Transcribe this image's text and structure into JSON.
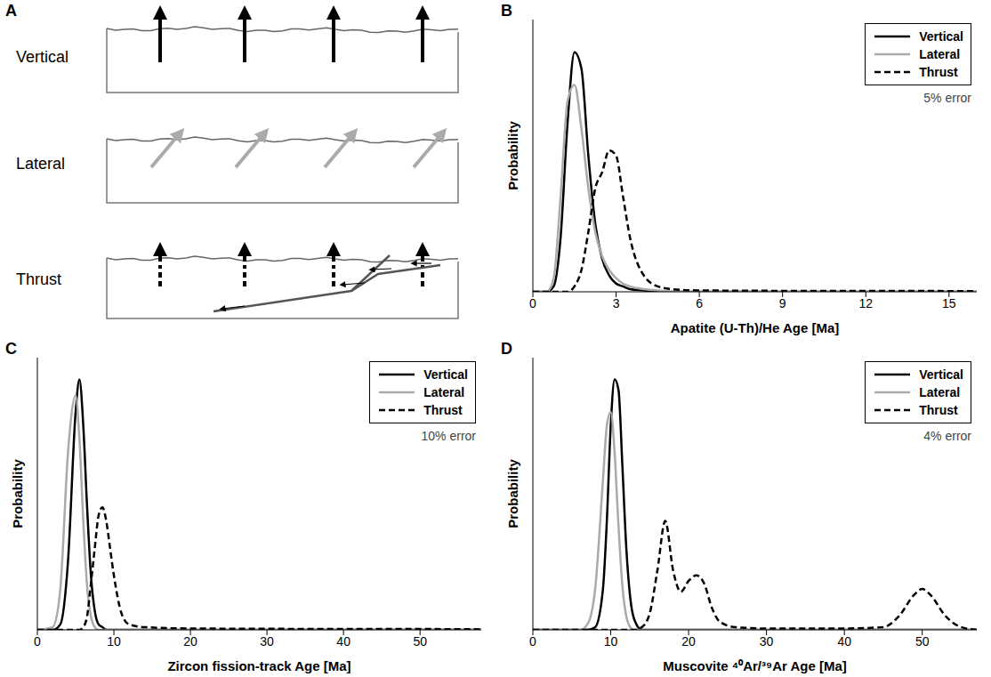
{
  "diagram": {
    "panel": "A",
    "labels": [
      "Vertical",
      "Lateral",
      "Thrust"
    ]
  },
  "chart_data": [
    {
      "type": "line",
      "panel": "B",
      "x_label": "Apatite (U-Th)/He Age [Ma]",
      "y_label": "Probability",
      "annotation": "5% error",
      "legend": "upper right",
      "tick_labels": "x",
      "grid": false,
      "xlim": [
        0,
        16
      ],
      "xticks": [
        0,
        3,
        6,
        9,
        12,
        15
      ],
      "ylim": [
        0,
        1
      ],
      "x": [
        0,
        0.5,
        0.75,
        1,
        1.25,
        1.5,
        1.75,
        2,
        2.25,
        2.5,
        2.75,
        3,
        3.25,
        3.5,
        4,
        4.5,
        5,
        6,
        8,
        10,
        12,
        14,
        16
      ],
      "series": [
        {
          "name": "Vertical",
          "color": "#000000",
          "line_style": "solid",
          "values": [
            0,
            0,
            0.02,
            0.2,
            0.62,
            0.88,
            0.82,
            0.5,
            0.25,
            0.12,
            0.06,
            0.03,
            0.02,
            0.01,
            0.005,
            0,
            0,
            0,
            0,
            0,
            0,
            0,
            0
          ]
        },
        {
          "name": "Lateral",
          "color": "#aaaaaa",
          "line_style": "solid",
          "values": [
            0,
            0,
            0.05,
            0.35,
            0.7,
            0.76,
            0.6,
            0.38,
            0.22,
            0.13,
            0.08,
            0.05,
            0.03,
            0.02,
            0.01,
            0.005,
            0,
            0,
            0,
            0,
            0,
            0,
            0
          ]
        },
        {
          "name": "Thrust",
          "color": "#000000",
          "line_style": "dashed",
          "values": [
            0,
            0,
            0,
            0,
            0,
            0.02,
            0.08,
            0.22,
            0.38,
            0.44,
            0.52,
            0.5,
            0.35,
            0.2,
            0.06,
            0.02,
            0.01,
            0.005,
            0.004,
            0.003,
            0.003,
            0.003,
            0.002
          ]
        }
      ]
    },
    {
      "type": "line",
      "panel": "C",
      "x_label": "Zircon fission-track Age [Ma]",
      "y_label": "Probability",
      "annotation": "10% error",
      "legend": "upper right",
      "tick_labels": "x",
      "grid": false,
      "xlim": [
        0,
        58
      ],
      "xticks": [
        0,
        10,
        20,
        30,
        40,
        50
      ],
      "ylim": [
        0,
        1
      ],
      "x": [
        0,
        2,
        3,
        4,
        5,
        5.5,
        6,
        6.5,
        7,
        7.5,
        8,
        8.5,
        9,
        9.5,
        10,
        11,
        12,
        14,
        20,
        30,
        40,
        50,
        58
      ],
      "series": [
        {
          "name": "Vertical",
          "color": "#000000",
          "line_style": "solid",
          "values": [
            0,
            0,
            0.02,
            0.25,
            0.8,
            0.92,
            0.75,
            0.45,
            0.2,
            0.07,
            0.02,
            0.01,
            0,
            0,
            0,
            0,
            0,
            0,
            0,
            0,
            0,
            0,
            0
          ]
        },
        {
          "name": "Lateral",
          "color": "#aaaaaa",
          "line_style": "solid",
          "values": [
            0,
            0.01,
            0.15,
            0.65,
            0.86,
            0.7,
            0.4,
            0.16,
            0.05,
            0.01,
            0,
            0,
            0,
            0,
            0,
            0,
            0,
            0,
            0,
            0,
            0,
            0,
            0
          ]
        },
        {
          "name": "Thrust",
          "color": "#000000",
          "line_style": "dashed",
          "values": [
            0,
            0,
            0,
            0,
            0,
            0,
            0.01,
            0.05,
            0.17,
            0.3,
            0.42,
            0.45,
            0.4,
            0.3,
            0.2,
            0.06,
            0.02,
            0.01,
            0.005,
            0.004,
            0.003,
            0.003,
            0.002
          ]
        }
      ]
    },
    {
      "type": "line",
      "panel": "D",
      "x_label": "Muscovite ⁴⁰Ar/³⁹Ar Age [Ma]",
      "y_label": "Probability",
      "annotation": "4% error",
      "legend": "upper right",
      "tick_labels": "x",
      "grid": false,
      "xlim": [
        0,
        57
      ],
      "xticks": [
        0,
        10,
        20,
        30,
        40,
        50
      ],
      "ylim": [
        0,
        1
      ],
      "x": [
        0,
        6,
        7,
        8,
        9,
        9.5,
        10,
        10.5,
        11,
        11.5,
        12,
        12.5,
        13,
        14,
        15,
        16,
        17,
        18,
        19,
        20,
        21,
        22,
        23,
        24,
        26,
        30,
        40,
        45,
        47,
        49,
        50,
        51,
        53,
        55,
        57
      ],
      "series": [
        {
          "name": "Vertical",
          "color": "#000000",
          "line_style": "solid",
          "values": [
            0,
            0,
            0,
            0.01,
            0.15,
            0.4,
            0.75,
            0.92,
            0.88,
            0.6,
            0.3,
            0.12,
            0.04,
            0,
            0,
            0,
            0,
            0,
            0,
            0,
            0,
            0,
            0,
            0,
            0,
            0,
            0,
            0,
            0,
            0,
            0,
            0,
            0,
            0,
            0
          ]
        },
        {
          "name": "Lateral",
          "color": "#aaaaaa",
          "line_style": "solid",
          "values": [
            0,
            0,
            0.02,
            0.15,
            0.55,
            0.75,
            0.8,
            0.65,
            0.38,
            0.16,
            0.05,
            0.01,
            0,
            0,
            0,
            0,
            0,
            0,
            0,
            0,
            0,
            0,
            0,
            0,
            0,
            0,
            0,
            0,
            0,
            0,
            0,
            0,
            0,
            0,
            0
          ]
        },
        {
          "name": "Thrust",
          "color": "#000000",
          "line_style": "dashed",
          "values": [
            0,
            0,
            0,
            0,
            0,
            0,
            0,
            0,
            0,
            0,
            0,
            0,
            0,
            0.01,
            0.06,
            0.22,
            0.4,
            0.22,
            0.14,
            0.18,
            0.2,
            0.17,
            0.08,
            0.03,
            0.01,
            0.005,
            0.005,
            0.01,
            0.05,
            0.13,
            0.15,
            0.13,
            0.05,
            0.01,
            0
          ]
        }
      ]
    }
  ]
}
